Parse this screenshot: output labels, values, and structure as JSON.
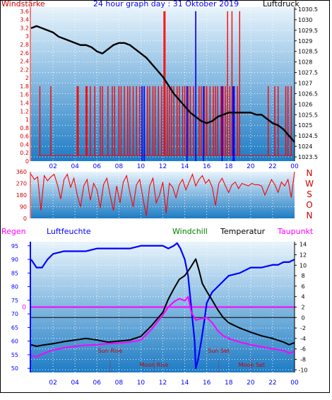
{
  "title": "24 hour graph day : 31 Oktober 2019",
  "colors": {
    "wind": "#ff0000",
    "winddir": "#ff0000",
    "pressure": "#000000",
    "humidity": "#0000ff",
    "temperature": "#000000",
    "windchill": "#008000",
    "dewpoint": "#ff00ff",
    "label_red": "#cc0000",
    "label_blue": "#0000ff",
    "label_magenta": "#ff00ff",
    "label_green": "#008000",
    "bg_top": "#e8f4fc",
    "bg_bottom": "#1e7cc4"
  },
  "x_tick_labels": [
    "02",
    "04",
    "06",
    "08",
    "10",
    "12",
    "14",
    "16",
    "18",
    "20",
    "22",
    "00"
  ],
  "chart_data": [
    {
      "type": "line",
      "label_left": "Windstärke",
      "label_right": "Luftdruck",
      "left_ticks": [
        "0",
        "0.2",
        "0.4",
        "0.6",
        "0.8",
        "1",
        "1.2",
        "1.4",
        "1.6",
        "1.8",
        "2",
        "2.2",
        "2.4",
        "2.6",
        "2.8",
        "3",
        "3.2",
        "3.4",
        "3.6"
      ],
      "right_ticks": [
        "1023.5",
        "1024",
        "1024.5",
        "1025",
        "1025.5",
        "1026",
        "1026.5",
        "1027",
        "1027.5",
        "1028",
        "1028.5",
        "1029",
        "1029.5",
        "1030",
        "1030.5"
      ],
      "xlim": [
        0,
        24
      ],
      "ylim_left": [
        0,
        3.7
      ],
      "ylim_right": [
        1023.3,
        1030.6
      ],
      "series": [
        {
          "name": "Luftdruck",
          "axis": "right",
          "x": [
            0,
            0.5,
            1,
            1.5,
            2,
            2.5,
            3,
            3.5,
            4,
            4.5,
            5,
            5.5,
            6,
            6.5,
            7,
            7.5,
            8,
            8.5,
            9,
            9.5,
            10,
            10.5,
            11,
            11.5,
            12,
            12.5,
            13,
            13.5,
            14,
            14.5,
            15,
            15.5,
            16,
            16.5,
            17,
            17.5,
            18,
            18.5,
            19,
            19.5,
            20,
            20.5,
            21,
            21.5,
            22,
            22.5,
            23,
            23.5,
            24
          ],
          "values": [
            1029.6,
            1029.7,
            1029.6,
            1029.5,
            1029.4,
            1029.2,
            1029.1,
            1029.0,
            1028.9,
            1028.8,
            1028.8,
            1028.7,
            1028.5,
            1028.4,
            1028.6,
            1028.8,
            1028.9,
            1028.9,
            1028.8,
            1028.6,
            1028.4,
            1028.2,
            1027.9,
            1027.6,
            1027.3,
            1026.9,
            1026.5,
            1026.2,
            1025.9,
            1025.6,
            1025.4,
            1025.2,
            1025.1,
            1025.2,
            1025.4,
            1025.5,
            1025.6,
            1025.6,
            1025.6,
            1025.6,
            1025.6,
            1025.5,
            1025.5,
            1025.3,
            1025.1,
            1025.0,
            1024.8,
            1024.5,
            1024.2
          ]
        },
        {
          "name": "Windstärke",
          "axis": "left",
          "type": "bar",
          "x": [
            0.8,
            1.8,
            4.2,
            4.3,
            5.0,
            5.1,
            5.4,
            5.8,
            6.3,
            6.5,
            7.0,
            7.4,
            7.6,
            8.0,
            8.2,
            8.5,
            8.8,
            9.0,
            9.3,
            9.6,
            9.9,
            10.1,
            10.3,
            10.6,
            10.8,
            11.1,
            11.3,
            11.6,
            11.9,
            12.1,
            12.2,
            12.4,
            12.6,
            12.8,
            13.0,
            13.3,
            13.5,
            13.8,
            14.0,
            14.3,
            14.5,
            14.8,
            15.0,
            15.3,
            15.5,
            15.8,
            16.0,
            16.3,
            16.6,
            16.8,
            17.0,
            17.3,
            17.5,
            17.7,
            17.9,
            18.1,
            18.3,
            18.5,
            18.8,
            19.0,
            21.6,
            22.2,
            22.5,
            23.2,
            23.4,
            23.7
          ],
          "values": [
            1.8,
            1.8,
            1.8,
            1.8,
            1.8,
            1.8,
            1.8,
            1.8,
            1.8,
            1.8,
            1.8,
            1.8,
            1.8,
            1.8,
            1.8,
            1.8,
            1.8,
            1.8,
            1.8,
            1.8,
            1.8,
            1.8,
            1.8,
            1.8,
            1.8,
            1.8,
            1.8,
            1.8,
            1.8,
            3.6,
            3.6,
            1.8,
            1.8,
            1.8,
            1.8,
            1.8,
            1.8,
            1.8,
            1.8,
            1.8,
            1.8,
            1.8,
            3.6,
            1.8,
            1.8,
            1.8,
            1.8,
            1.8,
            1.8,
            1.8,
            1.8,
            1.8,
            1.8,
            1.8,
            3.6,
            1.8,
            3.6,
            1.8,
            1.8,
            3.6,
            1.8,
            1.8,
            1.8,
            1.8,
            1.8,
            1.8
          ]
        },
        {
          "name": "Windstärke (blue)",
          "axis": "left",
          "type": "bar",
          "x": [
            10.1,
            10.3,
            14.2,
            15.0,
            15.7,
            17.4,
            18.4,
            18.5
          ],
          "values": [
            1.8,
            1.8,
            1.8,
            3.6,
            1.8,
            1.8,
            1.8,
            1.8
          ]
        }
      ]
    },
    {
      "type": "line",
      "label_right": [
        "N",
        "W",
        "S",
        "O",
        "N"
      ],
      "left_ticks": [
        "0",
        "90",
        "180",
        "270",
        "360"
      ],
      "xlim": [
        0,
        24
      ],
      "ylim": [
        0,
        360
      ],
      "series": [
        {
          "name": "Windrichtung",
          "x": [
            0,
            0.3,
            0.6,
            0.9,
            1.2,
            1.5,
            1.8,
            2.1,
            2.4,
            2.7,
            3.0,
            3.3,
            3.6,
            3.9,
            4.2,
            4.5,
            4.8,
            5.1,
            5.4,
            5.7,
            6.0,
            6.3,
            6.6,
            6.9,
            7.2,
            7.5,
            7.8,
            8.1,
            8.4,
            8.7,
            9.0,
            9.3,
            9.6,
            9.9,
            10.2,
            10.5,
            10.8,
            11.1,
            11.4,
            11.7,
            12.0,
            12.3,
            12.6,
            12.9,
            13.2,
            13.5,
            13.8,
            14.1,
            14.4,
            14.7,
            15.0,
            15.3,
            15.6,
            15.9,
            16.2,
            16.5,
            16.8,
            17.1,
            17.4,
            17.7,
            18.0,
            18.3,
            18.6,
            18.9,
            19.2,
            19.5,
            19.8,
            20.1,
            20.4,
            20.7,
            21.0,
            21.3,
            21.6,
            21.9,
            22.2,
            22.5,
            22.8,
            23.1,
            23.4,
            23.7,
            24.0
          ],
          "values": [
            340,
            300,
            320,
            60,
            330,
            290,
            320,
            340,
            260,
            150,
            300,
            340,
            240,
            310,
            180,
            90,
            250,
            300,
            140,
            270,
            220,
            80,
            260,
            310,
            180,
            60,
            250,
            120,
            280,
            330,
            200,
            90,
            260,
            300,
            150,
            20,
            250,
            310,
            120,
            180,
            280,
            40,
            270,
            240,
            160,
            260,
            300,
            220,
            280,
            340,
            250,
            300,
            330,
            270,
            300,
            240,
            100,
            270,
            310,
            250,
            200,
            260,
            280,
            230,
            270,
            260,
            250,
            270,
            260,
            260,
            250,
            180,
            240,
            300,
            260,
            200,
            280,
            250,
            300,
            160,
            360
          ]
        }
      ]
    },
    {
      "type": "line",
      "label_left": "Regen",
      "legend": [
        "Luftfeuchte",
        "Windchill",
        "Temperatur",
        "Taupunkt"
      ],
      "left_ticks": [
        "50",
        "55",
        "60",
        "65",
        "70",
        "75",
        "80",
        "85",
        "90",
        "95"
      ],
      "right_ticks": [
        "-10",
        "-8",
        "-6",
        "-4",
        "-2",
        "0",
        "2",
        "4",
        "6",
        "8",
        "10",
        "12",
        "14"
      ],
      "rain_axis_label": "0",
      "xlim": [
        0,
        24
      ],
      "ylim_left": [
        48.5,
        96.5
      ],
      "ylim_right": [
        -10.5,
        14.5
      ],
      "annotations": [
        {
          "text": "Sun Rise",
          "x": 7.2,
          "row": 1
        },
        {
          "text": "Moon Rise",
          "x": 11.2,
          "row": 2
        },
        {
          "text": "Sun Set",
          "x": 17.1,
          "row": 1
        },
        {
          "text": "Moon Set",
          "x": 20.1,
          "row": 2
        }
      ],
      "series": [
        {
          "name": "Luftfeuchte",
          "axis": "left",
          "x": [
            0,
            0.5,
            1,
            1.5,
            2,
            3,
            4,
            5,
            6,
            7,
            8,
            9,
            10,
            11,
            12,
            12.5,
            13,
            13.3,
            13.6,
            14,
            14.3,
            14.6,
            14.9,
            15,
            15.2,
            15.5,
            15.8,
            16,
            16.5,
            17,
            17.5,
            18,
            19,
            20,
            21,
            22,
            22.5,
            23,
            23.5,
            24
          ],
          "values": [
            90,
            87,
            87,
            90,
            92,
            93,
            93,
            93,
            94,
            94,
            94,
            94,
            95,
            95,
            95,
            94,
            95,
            96,
            94,
            90,
            84,
            72,
            60,
            50,
            53,
            60,
            68,
            74,
            78,
            80,
            82,
            84,
            85,
            87,
            87,
            88,
            88,
            89,
            89,
            90
          ]
        },
        {
          "name": "Temperatur",
          "axis": "right",
          "x": [
            0,
            0.5,
            1,
            2,
            3,
            4,
            5,
            6,
            7,
            8,
            9,
            10,
            11,
            12,
            12.5,
            13,
            13.5,
            14,
            14.5,
            15,
            15.3,
            15.6,
            16,
            16.5,
            17,
            17.5,
            18,
            19,
            20,
            21,
            22,
            23,
            23.5,
            24
          ],
          "values": [
            -5.2,
            -5.5,
            -5.3,
            -5.0,
            -4.6,
            -4.3,
            -4.0,
            -4.3,
            -4.7,
            -4.5,
            -4.3,
            -3.6,
            -1.5,
            1.0,
            3.5,
            5.5,
            7.3,
            8.0,
            9.5,
            11.2,
            9.0,
            6.5,
            5.0,
            3.3,
            1.5,
            0.0,
            -1.0,
            -2.0,
            -2.8,
            -3.5,
            -4.0,
            -4.7,
            -5.2,
            -4.8
          ]
        },
        {
          "name": "Taupunkt",
          "axis": "right",
          "x": [
            0,
            0.5,
            1,
            2,
            3,
            4,
            5,
            6,
            7,
            8,
            9,
            10,
            11,
            12,
            12.5,
            13,
            13.5,
            14,
            14.3,
            14.6,
            15,
            15.5,
            16,
            16.5,
            17,
            17.5,
            18,
            19,
            20,
            21,
            22,
            23,
            23.5,
            24
          ],
          "values": [
            -7.3,
            -7.5,
            -7.0,
            -6.2,
            -5.8,
            -5.5,
            -5.3,
            -5.2,
            -5.0,
            -4.9,
            -4.7,
            -4.3,
            -2.2,
            0.5,
            2.0,
            3.0,
            3.6,
            3.2,
            4.0,
            1.0,
            -0.5,
            -0.2,
            0.0,
            -1.0,
            -2.5,
            -3.5,
            -4.0,
            -4.7,
            -5.2,
            -5.6,
            -6.0,
            -6.3,
            -6.8,
            -6.5
          ]
        },
        {
          "name": "Regen",
          "axis": "rain",
          "x": [
            0,
            24
          ],
          "values": [
            0,
            0
          ]
        },
        {
          "name": "Zero line",
          "axis": "right",
          "x": [
            0,
            24
          ],
          "values": [
            0,
            0
          ]
        }
      ]
    }
  ]
}
